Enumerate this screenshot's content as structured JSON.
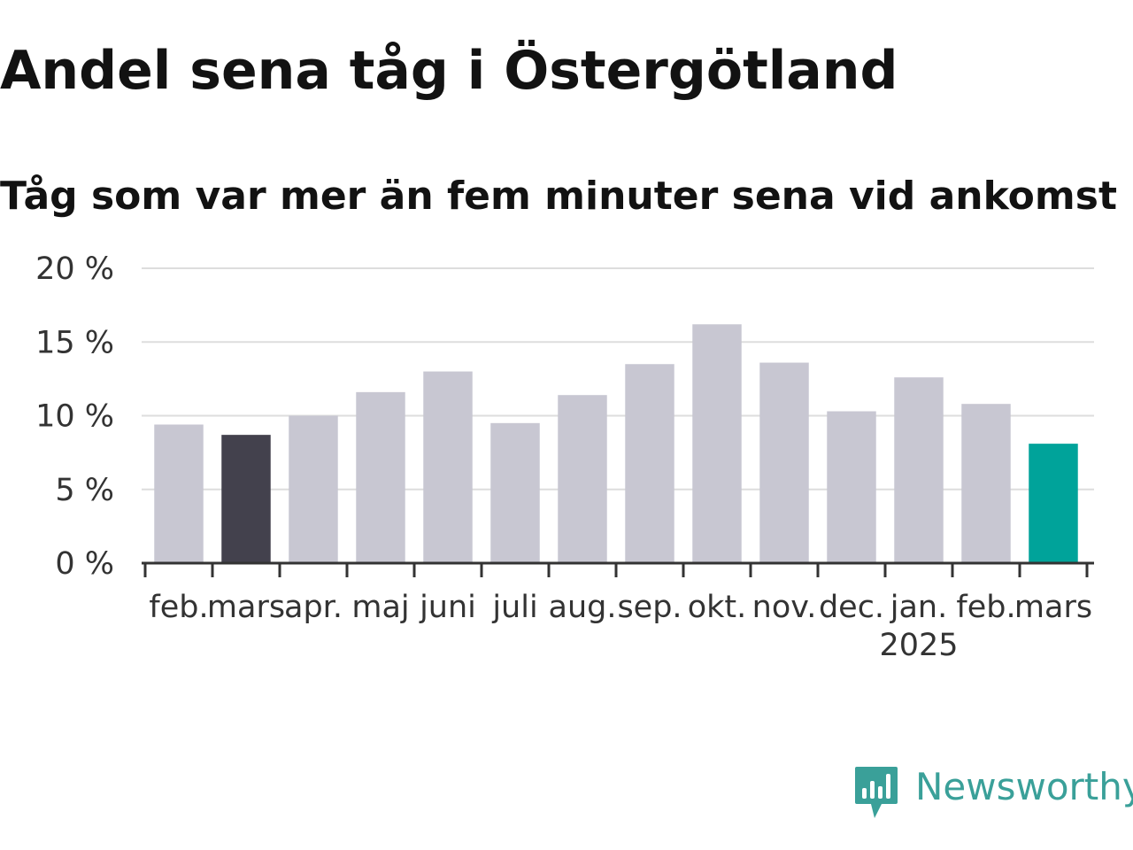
{
  "chart_data": {
    "type": "bar",
    "title": "Andel sena tåg i Östergötland",
    "subtitle": "Tåg som var mer än fem minuter sena vid ankomst",
    "categories": [
      "feb.",
      "mars",
      "apr.",
      "maj",
      "juni",
      "juli",
      "aug.",
      "sep.",
      "okt.",
      "nov.",
      "dec.",
      "jan.",
      "feb.",
      "mars"
    ],
    "year_labels": [
      {
        "index": 11,
        "label": "2025"
      }
    ],
    "values": [
      9.4,
      8.7,
      10.0,
      11.6,
      13.0,
      9.5,
      11.4,
      13.5,
      16.2,
      13.6,
      10.3,
      12.6,
      10.8,
      8.1
    ],
    "y_ticks": [
      0,
      5,
      10,
      15,
      20
    ],
    "y_tick_labels": [
      "0 %",
      "5 %",
      "10 %",
      "15 %",
      "20 %"
    ],
    "ylim": [
      0,
      20
    ],
    "xlabel": "",
    "ylabel": "",
    "grid": true,
    "colors": {
      "default": "#c8c7d2",
      "highlight_previous": "#43414d",
      "highlight_current": "#00a39a",
      "grid": "#dddddd",
      "axis": "#333333"
    },
    "highlights": {
      "1": "highlight_previous",
      "13": "highlight_current"
    }
  },
  "brand": {
    "name": "Newsworthy",
    "logo_icon": "newsworthy-logo-icon",
    "color": "#3aa099"
  }
}
